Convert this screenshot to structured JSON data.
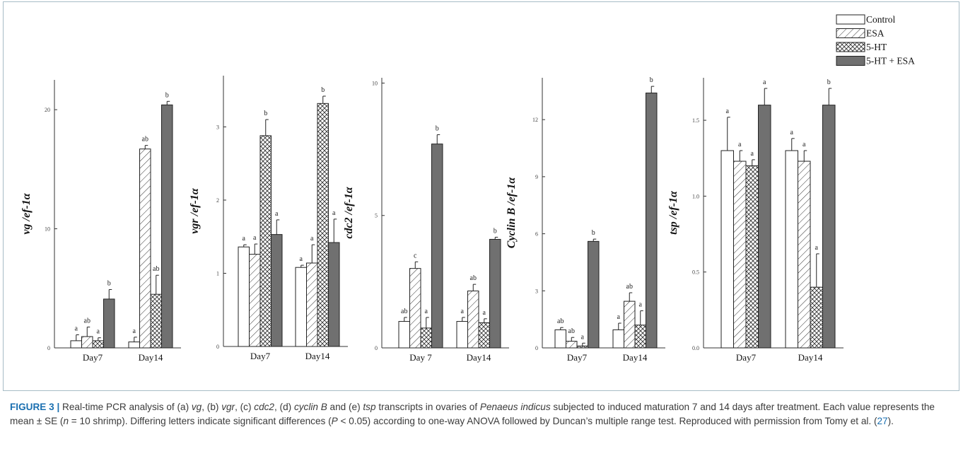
{
  "legend": {
    "items": [
      {
        "label": "Control",
        "pattern": "white"
      },
      {
        "label": "ESA",
        "pattern": "hatch"
      },
      {
        "label": "5-HT",
        "pattern": "cross"
      },
      {
        "label": "5-HT + ESA",
        "pattern": "solid"
      }
    ]
  },
  "colors": {
    "solid": "#707070",
    "axis": "#333333",
    "caption_label": "#1a6fb0",
    "caption_text": "#3a3a3a",
    "caption_rule": "#a7bcc6"
  },
  "chart_data": [
    {
      "type": "bar",
      "panel": "a",
      "ylabel": "vg /ef-1α",
      "categories": [
        "Day7",
        "Day14"
      ],
      "ylim": [
        0,
        22.5
      ],
      "yticks": [
        0,
        10,
        20
      ],
      "series": [
        {
          "name": "Control",
          "values": [
            0.6,
            0.5
          ],
          "errors": [
            0.5,
            0.4
          ],
          "letters": [
            "a",
            "a"
          ]
        },
        {
          "name": "ESA",
          "values": [
            0.95,
            16.7
          ],
          "errors": [
            0.8,
            0.3
          ],
          "letters": [
            "ab",
            "ab"
          ]
        },
        {
          "name": "5-HT",
          "values": [
            0.6,
            4.5
          ],
          "errors": [
            0.25,
            1.6
          ],
          "letters": [
            "a",
            "ab"
          ]
        },
        {
          "name": "5-HT + ESA",
          "values": [
            4.1,
            20.4
          ],
          "errors": [
            0.8,
            0.3
          ],
          "letters": [
            "b",
            "b"
          ]
        }
      ]
    },
    {
      "type": "bar",
      "panel": "b",
      "ylabel": "vgr /ef-1α",
      "categories": [
        "Day7",
        "Day14"
      ],
      "ylim": [
        0,
        3.7
      ],
      "yticks": [
        0,
        1,
        2,
        3
      ],
      "series": [
        {
          "name": "Control",
          "values": [
            1.36,
            1.08
          ],
          "errors": [
            0.03,
            0.03
          ],
          "letters": [
            "a",
            "a"
          ]
        },
        {
          "name": "ESA",
          "values": [
            1.26,
            1.14
          ],
          "errors": [
            0.14,
            0.25
          ],
          "letters": [
            "a",
            "a"
          ]
        },
        {
          "name": "5-HT",
          "values": [
            2.88,
            3.32
          ],
          "errors": [
            0.22,
            0.1
          ],
          "letters": [
            "b",
            "b"
          ]
        },
        {
          "name": "5-HT + ESA",
          "values": [
            1.53,
            1.42
          ],
          "errors": [
            0.2,
            0.32
          ],
          "letters": [
            "a",
            "a"
          ]
        }
      ]
    },
    {
      "type": "bar",
      "panel": "c",
      "ylabel": "cdc2 /ef-1α",
      "categories": [
        "Day 7",
        "Day14"
      ],
      "ylim": [
        0,
        10.2
      ],
      "yticks": [
        0,
        5,
        10
      ],
      "series": [
        {
          "name": "Control",
          "values": [
            1.0,
            1.0
          ],
          "errors": [
            0.15,
            0.15
          ],
          "letters": [
            "ab",
            "a"
          ]
        },
        {
          "name": "ESA",
          "values": [
            3.0,
            2.15
          ],
          "errors": [
            0.25,
            0.25
          ],
          "letters": [
            "c",
            "ab"
          ]
        },
        {
          "name": "5-HT",
          "values": [
            0.75,
            0.95
          ],
          "errors": [
            0.4,
            0.15
          ],
          "letters": [
            "a",
            "a"
          ]
        },
        {
          "name": "5-HT + ESA",
          "values": [
            7.7,
            4.1
          ],
          "errors": [
            0.35,
            0.08
          ],
          "letters": [
            "b",
            "b"
          ]
        }
      ]
    },
    {
      "type": "bar",
      "panel": "d",
      "ylabel": "Cyclin B /ef-1α",
      "categories": [
        "Day7",
        "Day14"
      ],
      "ylim": [
        0,
        14.2
      ],
      "yticks": [
        0,
        3,
        6,
        9,
        12
      ],
      "series": [
        {
          "name": "Control",
          "values": [
            0.95,
            0.95
          ],
          "errors": [
            0.12,
            0.35
          ],
          "letters": [
            "ab",
            "a"
          ]
        },
        {
          "name": "ESA",
          "values": [
            0.35,
            2.45
          ],
          "errors": [
            0.2,
            0.45
          ],
          "letters": [
            "ab",
            "ab"
          ]
        },
        {
          "name": "5-HT",
          "values": [
            0.1,
            1.2
          ],
          "errors": [
            0.15,
            0.75
          ],
          "letters": [
            "a",
            "a"
          ]
        },
        {
          "name": "5-HT + ESA",
          "values": [
            5.6,
            13.4
          ],
          "errors": [
            0.12,
            0.35
          ],
          "letters": [
            "b",
            "b"
          ]
        }
      ]
    },
    {
      "type": "bar",
      "panel": "e",
      "ylabel": "tsp /ef-1α",
      "categories": [
        "Day7",
        "Day14"
      ],
      "ylim": [
        0,
        1.78
      ],
      "yticks": [
        0.0,
        0.5,
        1.0,
        1.5
      ],
      "ytick_labels": [
        "0.0",
        "0.5",
        "1.0",
        "1.5"
      ],
      "series": [
        {
          "name": "Control",
          "values": [
            1.3,
            1.3
          ],
          "errors": [
            0.22,
            0.08
          ],
          "letters": [
            "a",
            "a"
          ]
        },
        {
          "name": "ESA",
          "values": [
            1.23,
            1.23
          ],
          "errors": [
            0.07,
            0.07
          ],
          "letters": [
            "a",
            "a"
          ]
        },
        {
          "name": "5-HT",
          "values": [
            1.2,
            0.4
          ],
          "errors": [
            0.04,
            0.22
          ],
          "letters": [
            "a",
            "a"
          ]
        },
        {
          "name": "5-HT + ESA",
          "values": [
            1.6,
            1.6
          ],
          "errors": [
            0.11,
            0.11
          ],
          "letters": [
            "a",
            "b"
          ]
        }
      ]
    }
  ],
  "caption": {
    "label": "FIGURE 3 |",
    "parts": [
      {
        "t": " Real-time PCR analysis of (a) ",
        "i": false
      },
      {
        "t": "vg",
        "i": true
      },
      {
        "t": ", (b) ",
        "i": false
      },
      {
        "t": "vgr",
        "i": true
      },
      {
        "t": ", (c) ",
        "i": false
      },
      {
        "t": "cdc2",
        "i": true
      },
      {
        "t": ", (d) ",
        "i": false
      },
      {
        "t": "cyclin B",
        "i": true
      },
      {
        "t": " and (e) ",
        "i": false
      },
      {
        "t": "tsp",
        "i": true
      },
      {
        "t": " transcripts in ovaries of ",
        "i": false
      },
      {
        "t": "Penaeus indicus",
        "i": true
      },
      {
        "t": " subjected to induced maturation 7 and 14 days after treatment. Each value represents the mean ± SE (",
        "i": false
      },
      {
        "t": "n",
        "i": true
      },
      {
        "t": " = 10 shrimp). Differing letters indicate significant differences (",
        "i": false
      },
      {
        "t": "P",
        "i": true
      },
      {
        "t": " < 0.05) according to one-way ANOVA followed by Duncan’s multiple range test. Reproduced with permission from Tomy et al. (",
        "i": false
      },
      {
        "t": "27",
        "i": false,
        "ref": true
      },
      {
        "t": ").",
        "i": false
      }
    ]
  }
}
